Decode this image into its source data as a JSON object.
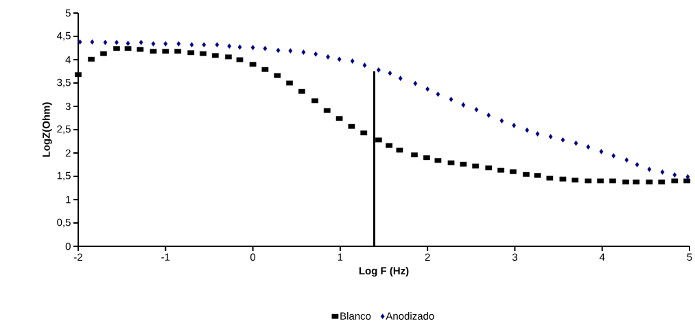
{
  "chart_data": {
    "type": "scatter",
    "xlabel": "Log F (Hz)",
    "ylabel": "LogZ(Ohm)",
    "xlim": [
      -2,
      5
    ],
    "xticks": [
      -2,
      -1,
      0,
      1,
      2,
      3,
      4,
      5
    ],
    "ylim": [
      0,
      5
    ],
    "yticks": [
      0,
      {
        "value": 0.5,
        "label": "0,5"
      },
      1,
      {
        "value": 1.5,
        "label": "1,5"
      },
      2,
      {
        "value": 2.5,
        "label": "2,5"
      },
      3,
      {
        "value": 3.5,
        "label": "3,5"
      },
      4,
      {
        "value": 4.5,
        "label": "4,5"
      },
      5
    ],
    "legend": "bottom",
    "series": [
      {
        "name": "Blanco",
        "color": "#000000",
        "marker": "square",
        "x": [
          -2,
          -1.85,
          -1.71,
          -1.56,
          -1.43,
          -1.29,
          -1.14,
          -1.0,
          -0.86,
          -0.71,
          -0.57,
          -0.43,
          -0.28,
          -0.15,
          0.0,
          0.14,
          0.28,
          0.42,
          0.56,
          0.71,
          0.85,
          0.99,
          1.13,
          1.27,
          1.44,
          1.56,
          1.68,
          1.85,
          1.99,
          2.12,
          2.27,
          2.41,
          2.55,
          2.7,
          2.84,
          2.98,
          3.13,
          3.26,
          3.4,
          3.55,
          3.69,
          3.84,
          3.98,
          4.12,
          4.27,
          4.39,
          4.54,
          4.68,
          4.83,
          4.97
        ],
        "values": [
          3.68,
          4.01,
          4.13,
          4.24,
          4.24,
          4.22,
          4.18,
          4.18,
          4.18,
          4.15,
          4.13,
          4.09,
          4.06,
          4.0,
          3.9,
          3.79,
          3.66,
          3.5,
          3.32,
          3.12,
          2.91,
          2.74,
          2.57,
          2.43,
          2.28,
          2.16,
          2.06,
          1.96,
          1.9,
          1.84,
          1.79,
          1.76,
          1.72,
          1.68,
          1.63,
          1.6,
          1.54,
          1.52,
          1.46,
          1.44,
          1.42,
          1.4,
          1.4,
          1.4,
          1.38,
          1.38,
          1.38,
          1.38,
          1.4,
          1.4
        ]
      },
      {
        "name": "Anodizado",
        "color": "#000080",
        "marker": "diamond",
        "x": [
          -1.98,
          -1.84,
          -1.69,
          -1.56,
          -1.43,
          -1.28,
          -1.14,
          -1.0,
          -0.85,
          -0.7,
          -0.56,
          -0.41,
          -0.27,
          -0.15,
          0.0,
          0.14,
          0.29,
          0.43,
          0.58,
          0.72,
          0.86,
          0.99,
          1.14,
          1.28,
          1.44,
          1.57,
          1.69,
          1.86,
          2.0,
          2.12,
          2.27,
          2.41,
          2.56,
          2.7,
          2.85,
          2.99,
          3.14,
          3.26,
          3.41,
          3.55,
          3.7,
          3.84,
          3.99,
          4.13,
          4.28,
          4.4,
          4.54,
          4.69,
          4.83,
          4.98
        ],
        "values": [
          4.38,
          4.38,
          4.37,
          4.37,
          4.35,
          4.37,
          4.34,
          4.34,
          4.34,
          4.32,
          4.32,
          4.32,
          4.29,
          4.27,
          4.26,
          4.24,
          4.2,
          4.19,
          4.16,
          4.12,
          4.06,
          4.01,
          3.97,
          3.88,
          3.78,
          3.71,
          3.6,
          3.49,
          3.37,
          3.26,
          3.15,
          3.03,
          2.93,
          2.81,
          2.69,
          2.59,
          2.49,
          2.41,
          2.35,
          2.28,
          2.21,
          2.13,
          2.03,
          1.94,
          1.85,
          1.75,
          1.65,
          1.59,
          1.53,
          1.49
        ]
      },
      {
        "type": "line",
        "color": "#000000",
        "marker": "none",
        "line_style": "solid",
        "x": [
          1.39,
          1.39
        ],
        "values": [
          0,
          3.75
        ]
      }
    ]
  }
}
